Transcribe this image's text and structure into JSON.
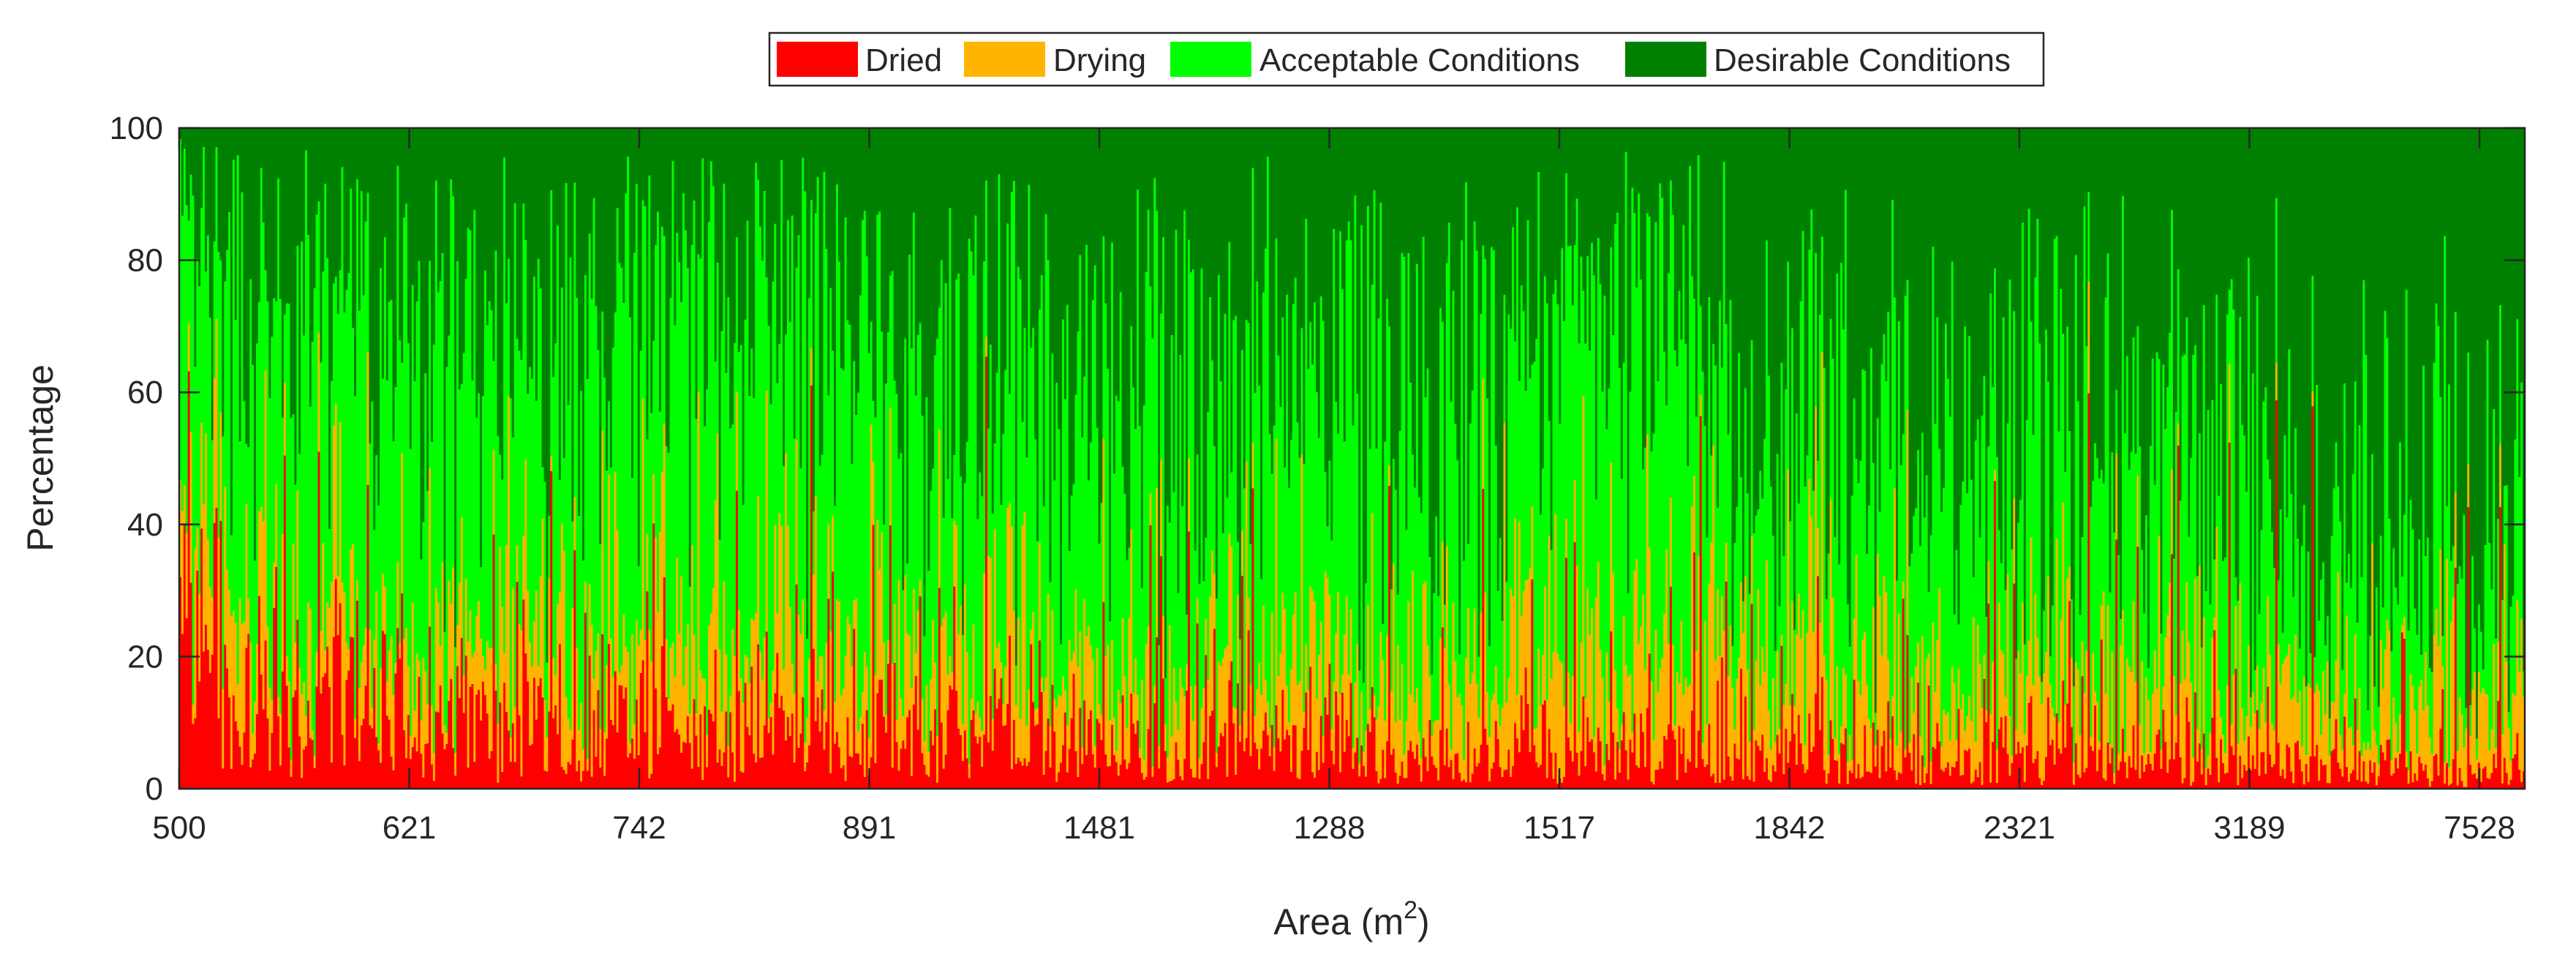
{
  "chart_data": {
    "type": "bar",
    "stacked": true,
    "xlabel": "Area (m",
    "xlabel_sup": "2",
    "xlabel_close": ")",
    "ylabel": "Percentage",
    "ylim": [
      0,
      100
    ],
    "yticks": [
      "0",
      "20",
      "40",
      "60",
      "80",
      "100"
    ],
    "xticks": [
      "500",
      "621",
      "742",
      "891",
      "1481",
      "1288",
      "1517",
      "1842",
      "2321",
      "3189",
      "7528"
    ],
    "num_bars": 1100,
    "grid": false,
    "legend_position": "top",
    "series": [
      {
        "name": "Dried",
        "color": "#ff0000"
      },
      {
        "name": "Drying",
        "color": "#ffb400"
      },
      {
        "name": "Acceptable Conditions",
        "color": "#00ff00"
      },
      {
        "name": "Desirable Conditions",
        "color": "#008000"
      }
    ],
    "segments": [
      {
        "start": 0.0,
        "end": 0.02,
        "mean": [
          30,
          15,
          40,
          15
        ]
      },
      {
        "start": 0.02,
        "end": 0.1,
        "mean": [
          12,
          12,
          50,
          26
        ]
      },
      {
        "start": 0.1,
        "end": 0.2,
        "mean": [
          10,
          13,
          47,
          30
        ]
      },
      {
        "start": 0.2,
        "end": 0.3,
        "mean": [
          9,
          14,
          45,
          32
        ]
      },
      {
        "start": 0.3,
        "end": 0.4,
        "mean": [
          8,
          12,
          42,
          38
        ]
      },
      {
        "start": 0.4,
        "end": 0.5,
        "mean": [
          7,
          12,
          40,
          41
        ]
      },
      {
        "start": 0.5,
        "end": 0.57,
        "mean": [
          5,
          12,
          36,
          47
        ]
      },
      {
        "start": 0.57,
        "end": 0.66,
        "mean": [
          6,
          16,
          48,
          30
        ]
      },
      {
        "start": 0.66,
        "end": 0.75,
        "mean": [
          5,
          13,
          34,
          48
        ]
      },
      {
        "start": 0.75,
        "end": 0.85,
        "mean": [
          5,
          11,
          31,
          53
        ]
      },
      {
        "start": 0.85,
        "end": 0.93,
        "mean": [
          4,
          10,
          26,
          60
        ]
      },
      {
        "start": 0.93,
        "end": 1.0,
        "mean": [
          3,
          9,
          21,
          67
        ]
      }
    ]
  }
}
